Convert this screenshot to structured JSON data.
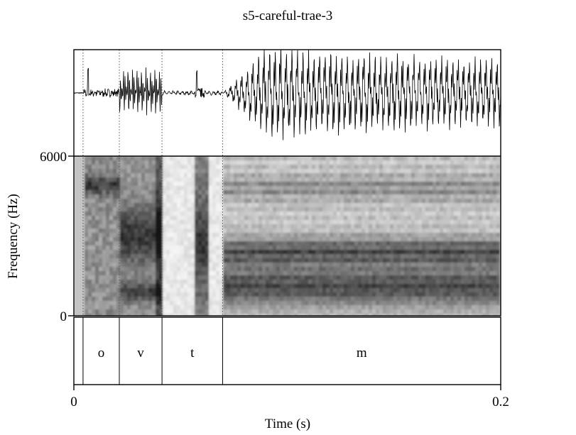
{
  "title": "s5-careful-trae-3",
  "y_axis": {
    "label": "Frequency (Hz)",
    "max_label": "6000",
    "min_label": "0"
  },
  "x_axis": {
    "label": "Time (s)",
    "start_label": "0",
    "end_label": "0.2"
  },
  "chart_data": {
    "type": "spectrogram",
    "x_range_s": [
      0,
      0.2
    ],
    "y_range_hz": [
      0,
      6000
    ],
    "segments": [
      {
        "label": "o",
        "start_s": 0.0043,
        "end_s": 0.0213
      },
      {
        "label": "v",
        "start_s": 0.0213,
        "end_s": 0.0413
      },
      {
        "label": "t",
        "start_s": 0.0413,
        "end_s": 0.0697
      },
      {
        "label": "m",
        "start_s": 0.0697,
        "end_s": 0.2
      }
    ]
  }
}
